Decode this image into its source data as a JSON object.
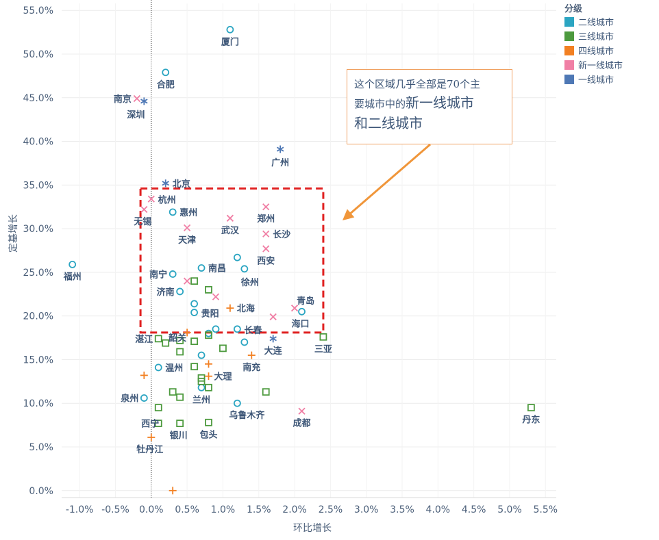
{
  "chart_data": {
    "type": "scatter",
    "xlabel": "环比增长",
    "ylabel": "定基增长",
    "xlim": [
      -1.25,
      5.65
    ],
    "ylim": [
      -0.8,
      55.8
    ],
    "x_ticks": [
      "-1.0%",
      "-0.5%",
      "0.0%",
      "0.5%",
      "1.0%",
      "1.5%",
      "2.0%",
      "2.5%",
      "3.0%",
      "3.5%",
      "4.0%",
      "4.5%",
      "5.0%",
      "5.5%"
    ],
    "x_tick_values": [
      -1.0,
      -0.5,
      0.0,
      0.5,
      1.0,
      1.5,
      2.0,
      2.5,
      3.0,
      3.5,
      4.0,
      4.5,
      5.0,
      5.5
    ],
    "y_ticks": [
      "0.0%",
      "5.0%",
      "10.0%",
      "15.0%",
      "20.0%",
      "25.0%",
      "30.0%",
      "35.0%",
      "40.0%",
      "45.0%",
      "50.0%",
      "55.0%"
    ],
    "y_tick_values": [
      0,
      5,
      10,
      15,
      20,
      25,
      30,
      35,
      40,
      45,
      50,
      55
    ],
    "grid": true,
    "reference_line_x": 0.0,
    "legend": {
      "title": "分级",
      "placement": "top-right",
      "items": [
        {
          "label": "二线城市",
          "color": "#2ba5c2"
        },
        {
          "label": "三线城市",
          "color": "#4d9a3e"
        },
        {
          "label": "四线城市",
          "color": "#f28022"
        },
        {
          "label": "新一线城市",
          "color": "#f07fa5"
        },
        {
          "label": "一线城市",
          "color": "#4e78b5"
        }
      ]
    },
    "series": [
      {
        "name": "二线城市",
        "marker": "circle",
        "color": "#2ba5c2",
        "points": [
          {
            "x": 1.1,
            "y": 52.8,
            "label": "厦门"
          },
          {
            "x": 0.2,
            "y": 47.9,
            "label": "合肥"
          },
          {
            "x": 0.3,
            "y": 31.9,
            "label": "惠州"
          },
          {
            "x": -1.1,
            "y": 25.9,
            "label": "福州"
          },
          {
            "x": 1.2,
            "y": 26.7,
            "label": ""
          },
          {
            "x": 0.7,
            "y": 25.5,
            "label": "南昌"
          },
          {
            "x": 1.3,
            "y": 25.4,
            "label": "徐州"
          },
          {
            "x": 0.3,
            "y": 24.8,
            "label": "南宁"
          },
          {
            "x": 0.4,
            "y": 22.8,
            "label": "济南"
          },
          {
            "x": 0.6,
            "y": 21.4,
            "label": ""
          },
          {
            "x": 0.6,
            "y": 20.4,
            "label": "贵阳"
          },
          {
            "x": 2.1,
            "y": 20.5,
            "label": "海口"
          },
          {
            "x": 0.9,
            "y": 18.5,
            "label": ""
          },
          {
            "x": 1.2,
            "y": 18.5,
            "label": "长春"
          },
          {
            "x": 0.8,
            "y": 18.0,
            "label": ""
          },
          {
            "x": 1.3,
            "y": 17.0,
            "label": ""
          },
          {
            "x": 0.7,
            "y": 15.5,
            "label": ""
          },
          {
            "x": 0.1,
            "y": 14.1,
            "label": "温州"
          },
          {
            "x": 0.7,
            "y": 11.8,
            "label": "兰州"
          },
          {
            "x": -0.1,
            "y": 10.6,
            "label": "泉州"
          },
          {
            "x": 1.2,
            "y": 10.0,
            "label": "乌鲁木齐"
          }
        ]
      },
      {
        "name": "三线城市",
        "marker": "square",
        "color": "#4d9a3e",
        "points": [
          {
            "x": 0.6,
            "y": 24.0,
            "label": ""
          },
          {
            "x": 0.8,
            "y": 23.0,
            "label": ""
          },
          {
            "x": 0.1,
            "y": 17.4,
            "label": "湛江"
          },
          {
            "x": 0.2,
            "y": 16.9,
            "label": ""
          },
          {
            "x": 0.4,
            "y": 17.2,
            "label": ""
          },
          {
            "x": 0.6,
            "y": 17.1,
            "label": ""
          },
          {
            "x": 0.8,
            "y": 17.8,
            "label": ""
          },
          {
            "x": 2.4,
            "y": 17.6,
            "label": "三亚"
          },
          {
            "x": 0.4,
            "y": 15.9,
            "label": ""
          },
          {
            "x": 1.0,
            "y": 16.3,
            "label": ""
          },
          {
            "x": 0.6,
            "y": 14.2,
            "label": ""
          },
          {
            "x": 0.7,
            "y": 12.9,
            "label": ""
          },
          {
            "x": 0.7,
            "y": 12.5,
            "label": ""
          },
          {
            "x": 0.8,
            "y": 11.8,
            "label": ""
          },
          {
            "x": 0.3,
            "y": 11.3,
            "label": ""
          },
          {
            "x": 0.4,
            "y": 10.7,
            "label": ""
          },
          {
            "x": 1.6,
            "y": 11.3,
            "label": ""
          },
          {
            "x": 0.1,
            "y": 9.5,
            "label": ""
          },
          {
            "x": 0.1,
            "y": 7.7,
            "label": "西宁"
          },
          {
            "x": 0.4,
            "y": 7.7,
            "label": "银川"
          },
          {
            "x": 0.8,
            "y": 7.8,
            "label": "包头"
          },
          {
            "x": 5.3,
            "y": 9.5,
            "label": "丹东"
          }
        ]
      },
      {
        "name": "四线城市",
        "marker": "plus",
        "color": "#f28022",
        "points": [
          {
            "x": 1.1,
            "y": 20.9,
            "label": "北海"
          },
          {
            "x": 0.5,
            "y": 18.1,
            "label": "韶关"
          },
          {
            "x": 1.4,
            "y": 15.5,
            "label": "南充"
          },
          {
            "x": 0.8,
            "y": 14.5,
            "label": ""
          },
          {
            "x": -0.1,
            "y": 13.2,
            "label": ""
          },
          {
            "x": 0.8,
            "y": 13.1,
            "label": "大理"
          },
          {
            "x": 0.0,
            "y": 6.1,
            "label": "牡丹江"
          },
          {
            "x": 0.3,
            "y": 0.0,
            "label": ""
          }
        ]
      },
      {
        "name": "新一线城市",
        "marker": "x",
        "color": "#f07fa5",
        "points": [
          {
            "x": -0.2,
            "y": 44.9,
            "label": "南京"
          },
          {
            "x": 0.0,
            "y": 33.4,
            "label": "杭州"
          },
          {
            "x": -0.1,
            "y": 32.2,
            "label": "无锡"
          },
          {
            "x": 1.6,
            "y": 32.5,
            "label": "郑州"
          },
          {
            "x": 1.1,
            "y": 31.2,
            "label": "武汉"
          },
          {
            "x": 0.5,
            "y": 30.1,
            "label": "天津"
          },
          {
            "x": 1.6,
            "y": 29.4,
            "label": "长沙"
          },
          {
            "x": 1.6,
            "y": 27.7,
            "label": "西安"
          },
          {
            "x": 0.5,
            "y": 24.0,
            "label": ""
          },
          {
            "x": 0.9,
            "y": 22.2,
            "label": ""
          },
          {
            "x": 2.0,
            "y": 20.9,
            "label": "青岛"
          },
          {
            "x": 1.7,
            "y": 19.9,
            "label": ""
          },
          {
            "x": 2.1,
            "y": 9.1,
            "label": "成都"
          }
        ]
      },
      {
        "name": "一线城市",
        "marker": "asterisk",
        "color": "#4e78b5",
        "points": [
          {
            "x": -0.1,
            "y": 44.6,
            "label": "深圳"
          },
          {
            "x": 1.8,
            "y": 39.1,
            "label": "广州"
          },
          {
            "x": 0.2,
            "y": 35.2,
            "label": "北京"
          },
          {
            "x": 1.7,
            "y": 17.4,
            "label": "大连"
          }
        ]
      }
    ]
  },
  "annotation": {
    "line1": "这个区域几乎全部是70个主",
    "line2_prefix": "要城市中的",
    "line2_emph": "新一线城市",
    "line3": "和二线城市",
    "box_color": "#e02020",
    "arrow_color": "#f0963a"
  }
}
